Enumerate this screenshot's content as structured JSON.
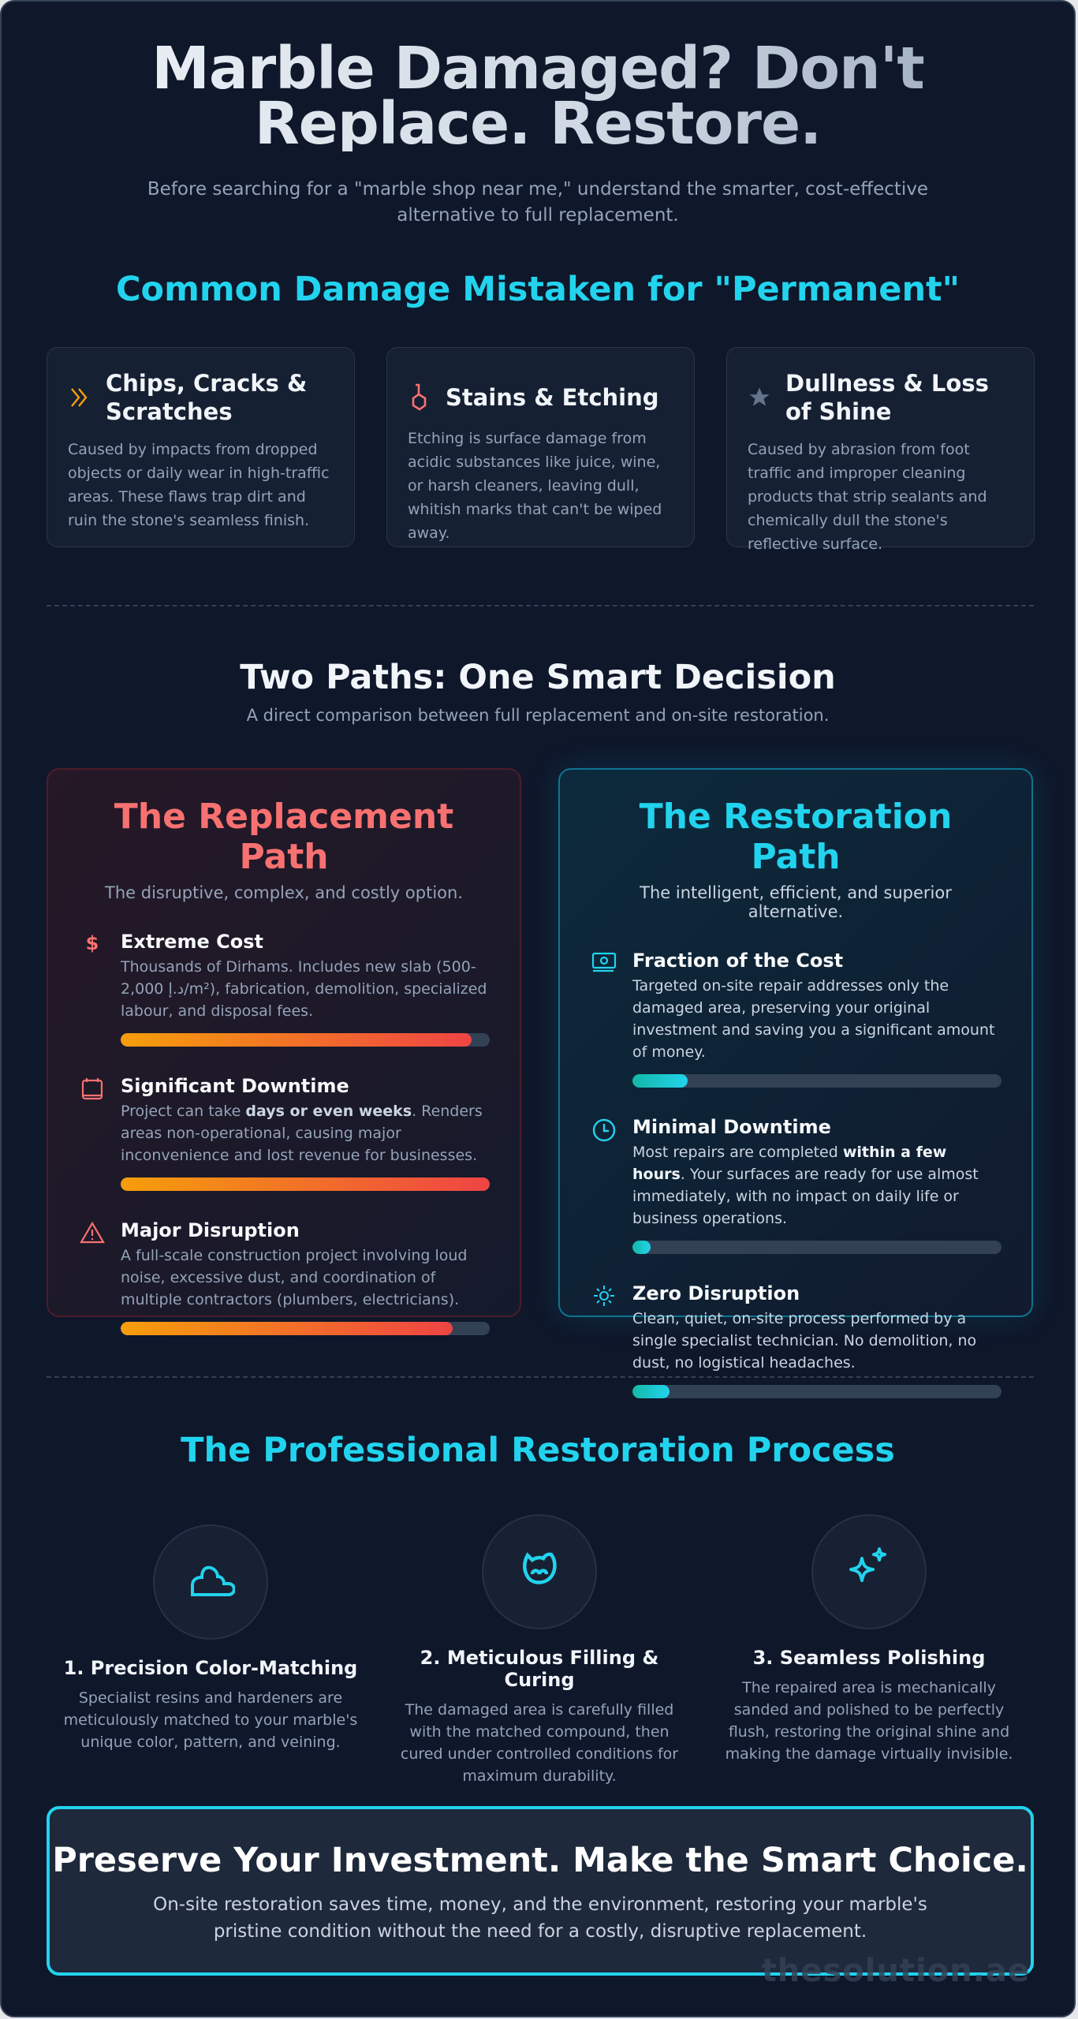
{
  "hero": {
    "title": "Marble Damaged? Don't Replace. Restore.",
    "subtitle": "Before searching for a \"marble shop near me,\" understand the smarter, cost-effective alternative to full replacement."
  },
  "damage": {
    "title": "Common Damage Mistaken for \"Permanent\"",
    "cards": [
      {
        "icon": "chevrons-icon",
        "icon_color": "#f59e0b",
        "title": "Chips, Cracks & Scratches",
        "text": "Caused by impacts from dropped objects or daily wear in high-traffic areas. These flaws trap dirt and ruin the stone's seamless finish."
      },
      {
        "icon": "flask-icon",
        "icon_color": "#f87171",
        "title": "Stains & Etching",
        "text": "Etching is surface damage from acidic substances like juice, wine, or harsh cleaners, leaving dull, whitish marks that can't be wiped away."
      },
      {
        "icon": "star-icon",
        "icon_color": "#64748b",
        "title": "Dullness & Loss of Shine",
        "text": "Caused by abrasion from foot traffic and improper cleaning products that strip sealants and chemically dull the stone's reflective surface."
      }
    ]
  },
  "paths": {
    "title": "Two Paths: One Smart Decision",
    "subtitle": "A direct comparison between full replacement and on-site restoration.",
    "replacement": {
      "title": "The Replacement Path",
      "subtitle": "The disruptive, complex, and costly option.",
      "color": "#f87171",
      "items": [
        {
          "icon": "dollar-icon",
          "title": "Extreme Cost",
          "text": "Thousands of Dirhams. Includes new slab (500-2,000 د.إ/m²), fabrication, demolition, specialized labour, and disposal fees.",
          "level_percent": 95
        },
        {
          "icon": "calendar-icon",
          "title": "Significant Downtime",
          "text_before": "Project can take ",
          "text_bold": "days or even weeks",
          "text_after": ". Renders areas non-operational, causing major inconvenience and lost revenue for businesses.",
          "level_percent": 100
        },
        {
          "icon": "warning-icon",
          "title": "Major Disruption",
          "text": "A full-scale construction project involving loud noise, excessive dust, and coordination of multiple contractors (plumbers, electricians).",
          "level_percent": 90
        }
      ]
    },
    "restoration": {
      "title": "The Restoration Path",
      "subtitle": "The intelligent, efficient, and superior alternative.",
      "color": "#22d3ee",
      "items": [
        {
          "icon": "money-icon",
          "title": "Fraction of the Cost",
          "text": "Targeted on-site repair addresses only the damaged area, preserving your original investment and saving you a significant amount of money.",
          "level_percent": 15
        },
        {
          "icon": "clock-icon",
          "title": "Minimal Downtime",
          "text_before": "Most repairs are completed ",
          "text_bold": "within a few hours",
          "text_after": ". Your surfaces are ready for use almost immediately, with no impact on daily life or business operations.",
          "level_percent": 5
        },
        {
          "icon": "sun-icon",
          "title": "Zero Disruption",
          "text": "Clean, quiet, on-site process performed by a single specialist technician. No demolition, no dust, no logistical headaches.",
          "level_percent": 10
        }
      ]
    }
  },
  "process": {
    "title": "The Professional Restoration Process",
    "steps": [
      {
        "icon": "cloud-icon",
        "title": "1. Precision Color-Matching",
        "text": "Specialist resins and hardeners are meticulously matched to your marble's unique color, pattern, and veining."
      },
      {
        "icon": "fill-icon",
        "title": "2. Meticulous Filling & Curing",
        "text": "The damaged area is carefully filled with the matched compound, then cured under controlled conditions for maximum durability."
      },
      {
        "icon": "sparkles-icon",
        "title": "3. Seamless Polishing",
        "text": "The repaired area is mechanically sanded and polished to be perfectly flush, restoring the original shine and making the damage virtually invisible."
      }
    ]
  },
  "cta": {
    "title": "Preserve Your Investment. Make the Smart Choice.",
    "text": "On-site restoration saves time, money, and the environment, restoring your marble's pristine condition without the need for a costly, disruptive replacement."
  },
  "watermark": "thesolution.ae",
  "colors": {
    "background": "#0f172a",
    "accent": "#22d3ee",
    "danger": "#f87171"
  }
}
